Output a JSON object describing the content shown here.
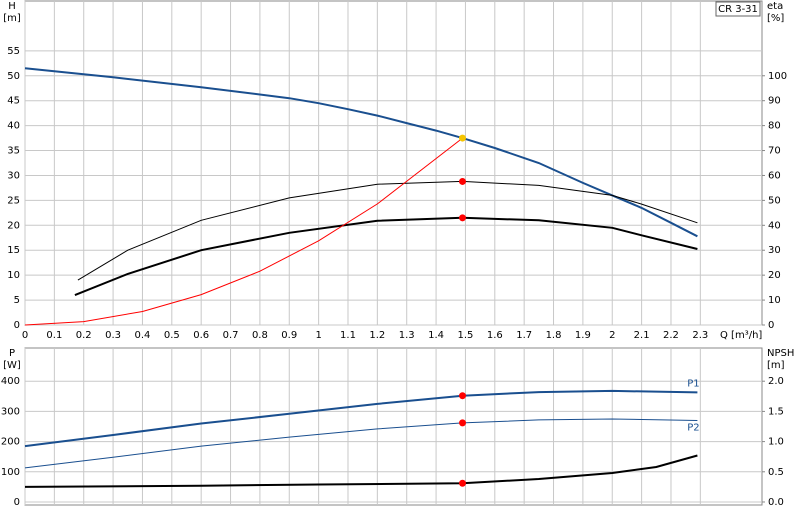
{
  "chart_data": [
    {
      "type": "line",
      "label": "CR 3-31",
      "ylabel": [
        "H",
        "[m]"
      ],
      "y2label": [
        "eta",
        "[%]"
      ],
      "xlabel": "Q [m³/h]",
      "xlim": [
        0,
        2.51
      ],
      "xticks": [
        0,
        0.1,
        0.2,
        0.3,
        0.4,
        0.5,
        0.6,
        0.7,
        0.8,
        0.9,
        1.0,
        1.1,
        1.2,
        1.3,
        1.4,
        1.5,
        1.6,
        1.7,
        1.8,
        1.9,
        2.0,
        2.1,
        2.2,
        2.3
      ],
      "ylim": [
        0,
        65
      ],
      "yticks": [
        0,
        5,
        10,
        15,
        20,
        25,
        30,
        35,
        40,
        45,
        50,
        55
      ],
      "y2lim": [
        0,
        130
      ],
      "y2ticks": [
        0,
        10,
        20,
        30,
        40,
        50,
        60,
        70,
        80,
        90,
        100
      ],
      "grid": true,
      "series": [
        {
          "color": "#1a4f8f",
          "width": 2,
          "x": [
            0,
            0.3,
            0.6,
            0.9,
            1.0,
            1.1,
            1.2,
            1.3,
            1.4,
            1.49,
            1.6,
            1.75,
            1.9,
            2.0,
            2.1,
            2.2,
            2.29
          ],
          "values": [
            51.5,
            49.7,
            47.7,
            45.5,
            44.5,
            43.3,
            42,
            40.5,
            39,
            37.5,
            35.5,
            32.5,
            28.5,
            26,
            23.5,
            20.5,
            17.8
          ]
        },
        {
          "color": "#000000",
          "width": 1,
          "axis": "y2",
          "x": [
            0.18,
            0.35,
            0.6,
            0.9,
            1.2,
            1.49,
            1.75,
            2.0,
            2.1,
            2.29
          ],
          "values": [
            18,
            30,
            42,
            51,
            56.5,
            57.6,
            56,
            52,
            48.5,
            41
          ]
        },
        {
          "color": "#000000",
          "width": 2,
          "axis": "y2",
          "x": [
            0.17,
            0.35,
            0.6,
            0.9,
            1.2,
            1.49,
            1.75,
            2.0,
            2.1,
            2.29
          ],
          "values": [
            12,
            20.5,
            30,
            37,
            41.8,
            43,
            42,
            39,
            36,
            30.5
          ]
        },
        {
          "color": "#ff0000",
          "width": 1,
          "x": [
            0,
            0.2,
            0.4,
            0.6,
            0.8,
            1.0,
            1.2,
            1.49
          ],
          "values": [
            0,
            0.68,
            2.7,
            6.1,
            10.8,
            16.9,
            24.3,
            37.5
          ]
        }
      ],
      "duty_points": [
        {
          "x": 1.49,
          "y": 37.5,
          "color": "#f5c400"
        },
        {
          "x": 1.49,
          "y": 57.6,
          "axis": "y2",
          "color": "#ff0000"
        },
        {
          "x": 1.49,
          "y": 43,
          "axis": "y2",
          "color": "#ff0000"
        }
      ]
    },
    {
      "type": "line",
      "ylabel": [
        "P",
        "[W]"
      ],
      "y2label": [
        "NPSH",
        "[m]"
      ],
      "xlim": [
        0,
        2.51
      ],
      "ylim": [
        -10,
        510
      ],
      "yticks": [
        0,
        100,
        200,
        300,
        400
      ],
      "y2lim": [
        -0.05,
        2.55
      ],
      "y2ticks": [
        {
          "value": 0,
          "label": "0.0"
        },
        0.5,
        {
          "value": 1,
          "label": "1.0"
        },
        1.5,
        {
          "value": 2,
          "label": "2.0"
        }
      ],
      "grid": true,
      "series": [
        {
          "name": "P1",
          "color": "#1a4f8f",
          "width": 2,
          "x": [
            0,
            0.3,
            0.6,
            0.9,
            1.2,
            1.49,
            1.75,
            2.0,
            2.29
          ],
          "values": [
            185,
            222,
            260,
            292,
            325,
            352,
            364,
            368,
            363
          ]
        },
        {
          "name": "P2",
          "color": "#1a4f8f",
          "width": 1,
          "x": [
            0,
            0.3,
            0.6,
            0.9,
            1.2,
            1.49,
            1.75,
            2.0,
            2.29
          ],
          "values": [
            113,
            148,
            185,
            215,
            242,
            262,
            272,
            275,
            270
          ]
        },
        {
          "color": "#000000",
          "width": 2,
          "axis": "y2",
          "x": [
            0,
            0.6,
            1.0,
            1.49,
            1.75,
            2.0,
            2.15,
            2.29
          ],
          "values": [
            0.25,
            0.27,
            0.29,
            0.31,
            0.38,
            0.48,
            0.58,
            0.77
          ]
        }
      ],
      "duty_points": [
        {
          "x": 1.49,
          "y": 352,
          "color": "#ff0000"
        },
        {
          "x": 1.49,
          "y": 262,
          "color": "#ff0000"
        },
        {
          "x": 1.49,
          "y": 0.31,
          "axis": "y2",
          "color": "#ff0000"
        }
      ]
    }
  ]
}
